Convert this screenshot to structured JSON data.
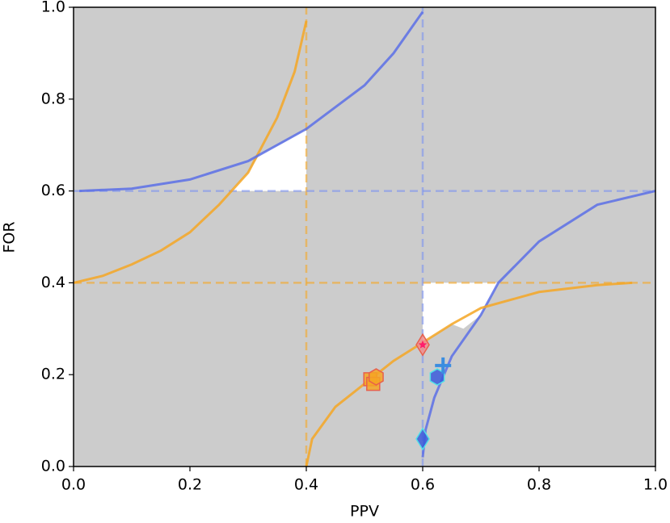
{
  "chart_data": {
    "type": "line",
    "xlabel": "PPV",
    "ylabel": "FOR",
    "xlim": [
      0,
      1
    ],
    "ylim": [
      0,
      1
    ],
    "xticks": [
      {
        "value": 0,
        "label": "0.0"
      },
      0.2,
      0.4,
      0.6,
      0.8,
      {
        "value": 1,
        "label": "1.0"
      }
    ],
    "yticks": [
      {
        "value": 0,
        "label": "0.0"
      },
      0.2,
      0.4,
      0.6,
      0.8,
      {
        "value": 1,
        "label": "1.0"
      }
    ],
    "background": "#cccccc",
    "regions": [
      {
        "color": "#ffffff",
        "x": [
          0.27,
          0.4,
          0.4,
          0.36,
          0.32,
          0.3
        ],
        "values": [
          0.6,
          0.6,
          0.735,
          0.705,
          0.68,
          0.64
        ]
      },
      {
        "color": "#ffffff",
        "x": [
          0.6,
          0.73,
          0.7,
          0.67,
          0.65,
          0.6
        ],
        "values": [
          0.4,
          0.4,
          0.33,
          0.3,
          0.31,
          0.27
        ]
      }
    ],
    "series": [
      {
        "color": "#f5a623",
        "dash": true,
        "x": [
          0,
          1
        ],
        "values": [
          0.4,
          0.4
        ]
      },
      {
        "color": "#f5a623",
        "dash": true,
        "x": [
          0.4,
          0.4
        ],
        "values": [
          0,
          1
        ]
      },
      {
        "color": "#7b93f0",
        "dash": true,
        "x": [
          0,
          1
        ],
        "values": [
          0.6,
          0.6
        ]
      },
      {
        "color": "#7b93f0",
        "dash": true,
        "x": [
          0.6,
          0.6
        ],
        "values": [
          0,
          1
        ]
      },
      {
        "color": "#f5a623",
        "dash": false,
        "x": [
          0,
          0.05,
          0.1,
          0.15,
          0.2,
          0.25,
          0.3,
          0.35,
          0.38,
          0.4
        ],
        "values": [
          0.4,
          0.415,
          0.44,
          0.47,
          0.51,
          0.57,
          0.64,
          0.76,
          0.86,
          0.97
        ]
      },
      {
        "color": "#5a6fe6",
        "dash": false,
        "x": [
          0.01,
          0.1,
          0.2,
          0.3,
          0.4,
          0.5,
          0.55,
          0.6
        ],
        "values": [
          0.6,
          0.605,
          0.625,
          0.665,
          0.735,
          0.83,
          0.9,
          0.99
        ]
      },
      {
        "color": "#5a6fe6",
        "dash": false,
        "x": [
          0.6,
          0.605,
          0.62,
          0.65,
          0.7,
          0.73,
          0.8,
          0.9,
          1.0
        ],
        "values": [
          0.02,
          0.08,
          0.15,
          0.24,
          0.33,
          0.4,
          0.49,
          0.57,
          0.6
        ]
      },
      {
        "color": "#f5a623",
        "dash": false,
        "x": [
          0.4,
          0.41,
          0.45,
          0.5,
          0.55,
          0.6,
          0.65,
          0.7,
          0.8,
          0.9,
          0.96
        ],
        "values": [
          0.0,
          0.06,
          0.13,
          0.18,
          0.23,
          0.27,
          0.31,
          0.345,
          0.38,
          0.395,
          0.4
        ]
      }
    ],
    "points": [
      {
        "marker": "square",
        "color": "#f5a623",
        "edge": "#e8604c",
        "x": 0.51,
        "y": 0.19
      },
      {
        "marker": "square",
        "color": "#f5a623",
        "edge": "#e8604c",
        "x": 0.515,
        "y": 0.18
      },
      {
        "marker": "hexagon",
        "color": "#f5a623",
        "edge": "#e8604c",
        "x": 0.52,
        "y": 0.195
      },
      {
        "marker": "diamond",
        "color": "#f08c8c",
        "edge": "#e8604c",
        "x": 0.6,
        "y": 0.265
      },
      {
        "marker": "star",
        "color": "#ff1a6a",
        "edge": "#ff1a6a",
        "x": 0.6,
        "y": 0.265
      },
      {
        "marker": "hexagon",
        "color": "#3b5bdb",
        "edge": "#4fe0e8",
        "x": 0.625,
        "y": 0.195
      },
      {
        "marker": "plus",
        "color": "#3b8de0",
        "edge": "#3b8de0",
        "x": 0.635,
        "y": 0.22
      },
      {
        "marker": "diamond",
        "color": "#3b5bdb",
        "edge": "#4fe0e8",
        "x": 0.6,
        "y": 0.06
      }
    ]
  }
}
